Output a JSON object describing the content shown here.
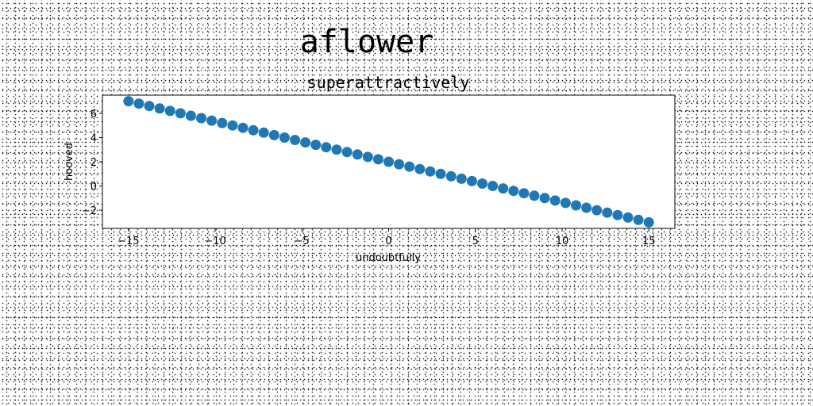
{
  "figure": {
    "suptitle": "aflower"
  },
  "chart_data": {
    "type": "scatter",
    "title": "superattractively",
    "xlabel": "undoubtfully",
    "ylabel": "hooved",
    "xlim": [
      -16.5,
      16.5
    ],
    "ylim": [
      -3.5,
      7.5
    ],
    "xticks": [
      -15,
      -10,
      -5,
      0,
      5,
      10,
      15
    ],
    "xtick_labels": [
      "−15",
      "−10",
      "−5",
      "0",
      "5",
      "10",
      "15"
    ],
    "yticks": [
      -2,
      0,
      2,
      4,
      6
    ],
    "ytick_labels": [
      "−2",
      "0",
      "2",
      "4",
      "6"
    ],
    "grid": false,
    "color": "#1f77b4",
    "x": [
      -15.0,
      -14.4,
      -13.8,
      -13.2,
      -12.6,
      -12.0,
      -11.4,
      -10.8,
      -10.2,
      -9.6,
      -9.0,
      -8.4,
      -7.8,
      -7.2,
      -6.6,
      -6.0,
      -5.4,
      -4.8,
      -4.2,
      -3.6,
      -3.0,
      -2.4,
      -1.8,
      -1.2,
      -0.6,
      0.0,
      0.6,
      1.2,
      1.8,
      2.4,
      3.0,
      3.6,
      4.2,
      4.8,
      5.4,
      6.0,
      6.6,
      7.2,
      7.8,
      8.4,
      9.0,
      9.6,
      10.2,
      10.8,
      11.4,
      12.0,
      12.6,
      13.2,
      13.8,
      14.4,
      15.0
    ],
    "y": [
      7.0,
      6.8,
      6.6,
      6.4,
      6.2,
      6.0,
      5.8,
      5.6,
      5.4,
      5.2,
      5.0,
      4.8,
      4.6,
      4.4,
      4.2,
      4.0,
      3.8,
      3.6,
      3.4,
      3.2,
      3.0,
      2.8,
      2.6,
      2.4,
      2.2,
      2.0,
      1.8,
      1.6,
      1.4,
      1.2,
      1.0,
      0.8,
      0.6,
      0.4,
      0.2,
      0.0,
      -0.2,
      -0.4,
      -0.6,
      -0.8,
      -1.0,
      -1.2,
      -1.4,
      -1.6,
      -1.8,
      -2.0,
      -2.2,
      -2.4,
      -2.6,
      -2.8,
      -3.0
    ]
  }
}
